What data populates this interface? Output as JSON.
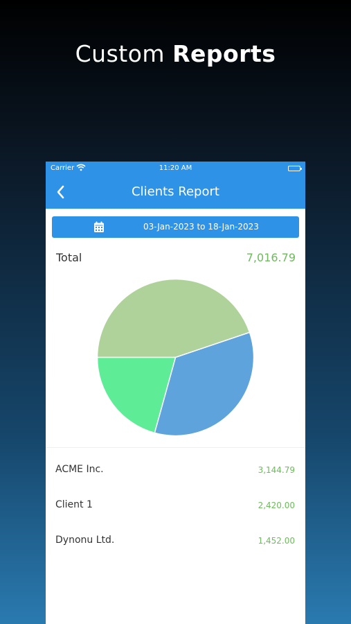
{
  "headline": {
    "light": "Custom",
    "bold": "Reports"
  },
  "status_bar": {
    "carrier": "Carrier",
    "time": "11:20 AM"
  },
  "nav": {
    "title": "Clients Report"
  },
  "date_range": {
    "label": "03-Jan-2023 to 18-Jan-2023"
  },
  "total": {
    "label": "Total",
    "value": "7,016.79"
  },
  "colors": {
    "accent": "#2e93e7",
    "amount_green": "#6dbb5c"
  },
  "chart_data": {
    "type": "pie",
    "slices": [
      {
        "label": "ACME Inc.",
        "value": 3144.79,
        "color": "#afd29b"
      },
      {
        "label": "Client 1",
        "value": 2420.0,
        "color": "#5ea3dc"
      },
      {
        "label": "Dynonu Ltd.",
        "value": 1452.0,
        "color": "#5fec97"
      }
    ]
  },
  "clients": [
    {
      "name": "ACME Inc.",
      "amount": "3,144.79"
    },
    {
      "name": "Client 1",
      "amount": "2,420.00"
    },
    {
      "name": "Dynonu Ltd.",
      "amount": "1,452.00"
    }
  ]
}
